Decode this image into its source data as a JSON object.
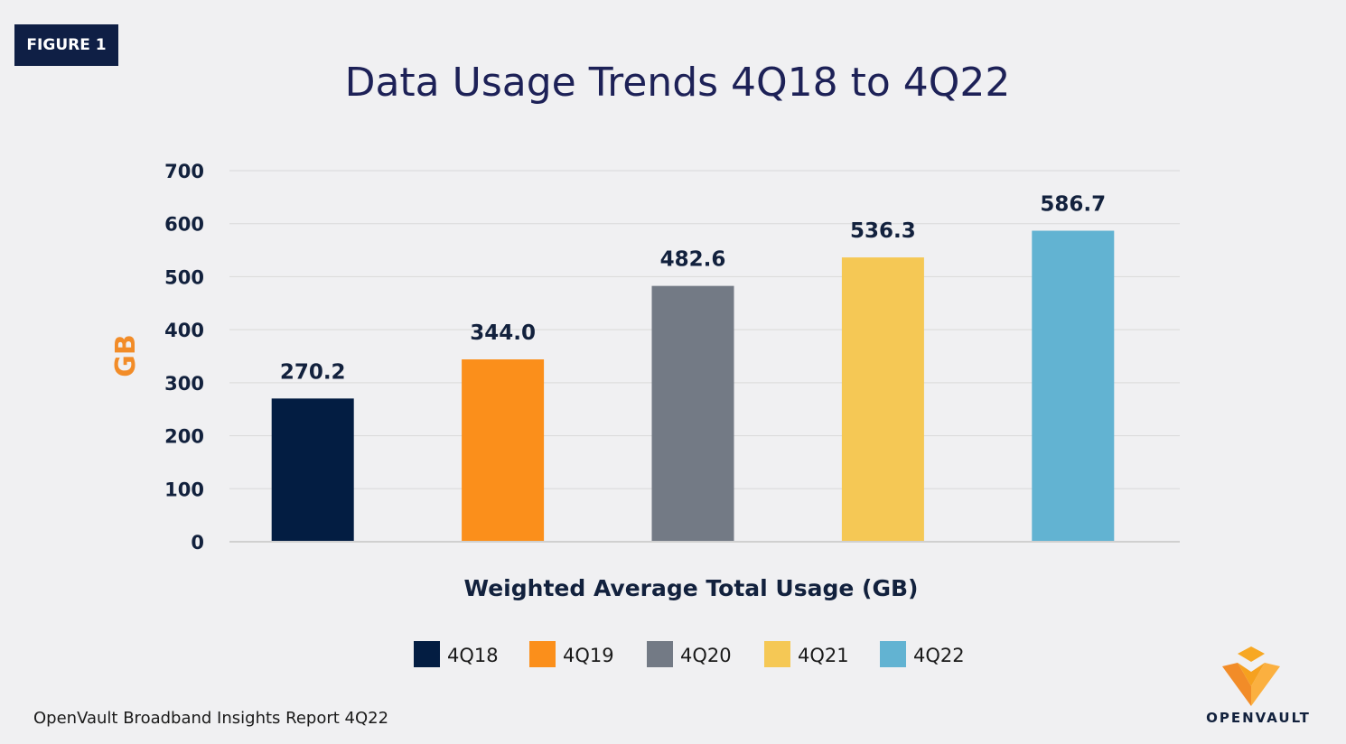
{
  "figure_label": "FIGURE 1",
  "source_note": "OpenVault Broadband Insights Report 4Q22",
  "logo_text": "OPENVAULT",
  "colors": {
    "bar_4Q18": "#031d42",
    "bar_4Q19": "#fb8f1b",
    "bar_4Q20": "#737a85",
    "bar_4Q21": "#f5c855",
    "bar_4Q22": "#62b3d2",
    "title": "#1d2157",
    "axis_label": "#f28c28",
    "text_dark": "#12213d"
  },
  "chart_data": {
    "type": "bar",
    "title": "Data Usage Trends 4Q18 to 4Q22",
    "xlabel": "Weighted Average Total Usage (GB)",
    "ylabel": "GB",
    "ylim": [
      0,
      700
    ],
    "yticks": [
      0,
      100,
      200,
      300,
      400,
      500,
      600,
      700
    ],
    "grid": true,
    "legend_position": "bottom",
    "categories": [
      "4Q18",
      "4Q19",
      "4Q20",
      "4Q21",
      "4Q22"
    ],
    "values": [
      270.2,
      344.0,
      482.6,
      536.3,
      586.7
    ],
    "value_labels": [
      "270.2",
      "344.0",
      "482.6",
      "536.3",
      "586.7"
    ],
    "bar_colors": [
      "#031d42",
      "#fb8f1b",
      "#737a85",
      "#f5c855",
      "#62b3d2"
    ]
  }
}
